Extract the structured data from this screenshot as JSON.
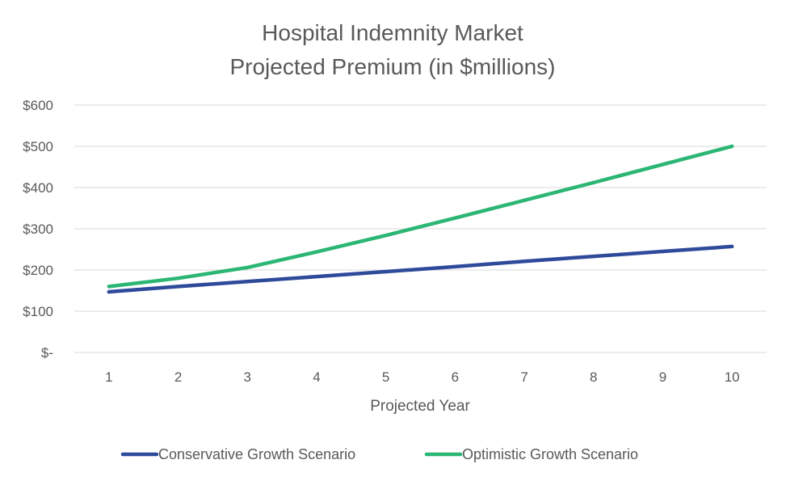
{
  "colors": {
    "conservative": "#2e4a9a",
    "optimistic": "#2bb673"
  },
  "chart_data": {
    "type": "line",
    "title_lines": [
      "Hospital Indemnity Market",
      "Projected Premium (in $millions)"
    ],
    "xlabel": "Projected Year",
    "ylabel": "",
    "categories": [
      "1",
      "2",
      "3",
      "4",
      "5",
      "6",
      "7",
      "8",
      "9",
      "10"
    ],
    "ylim": [
      0,
      600
    ],
    "y_ticks": [
      {
        "value": 0,
        "label": "$-"
      },
      {
        "value": 100,
        "label": "$100"
      },
      {
        "value": 200,
        "label": "$200"
      },
      {
        "value": 300,
        "label": "$300"
      },
      {
        "value": 400,
        "label": "$400"
      },
      {
        "value": 500,
        "label": "$500"
      },
      {
        "value": 600,
        "label": "$600"
      }
    ],
    "grid": true,
    "legend_position": "bottom",
    "series": [
      {
        "name": "Conservative Growth Scenario",
        "color_key": "conservative",
        "values": [
          147,
          160,
          172,
          184,
          196,
          208,
          221,
          233,
          245,
          257
        ]
      },
      {
        "name": "Optimistic Growth Scenario",
        "color_key": "optimistic",
        "values": [
          160,
          180,
          206,
          244,
          284,
          326,
          369,
          412,
          456,
          500
        ]
      }
    ]
  }
}
